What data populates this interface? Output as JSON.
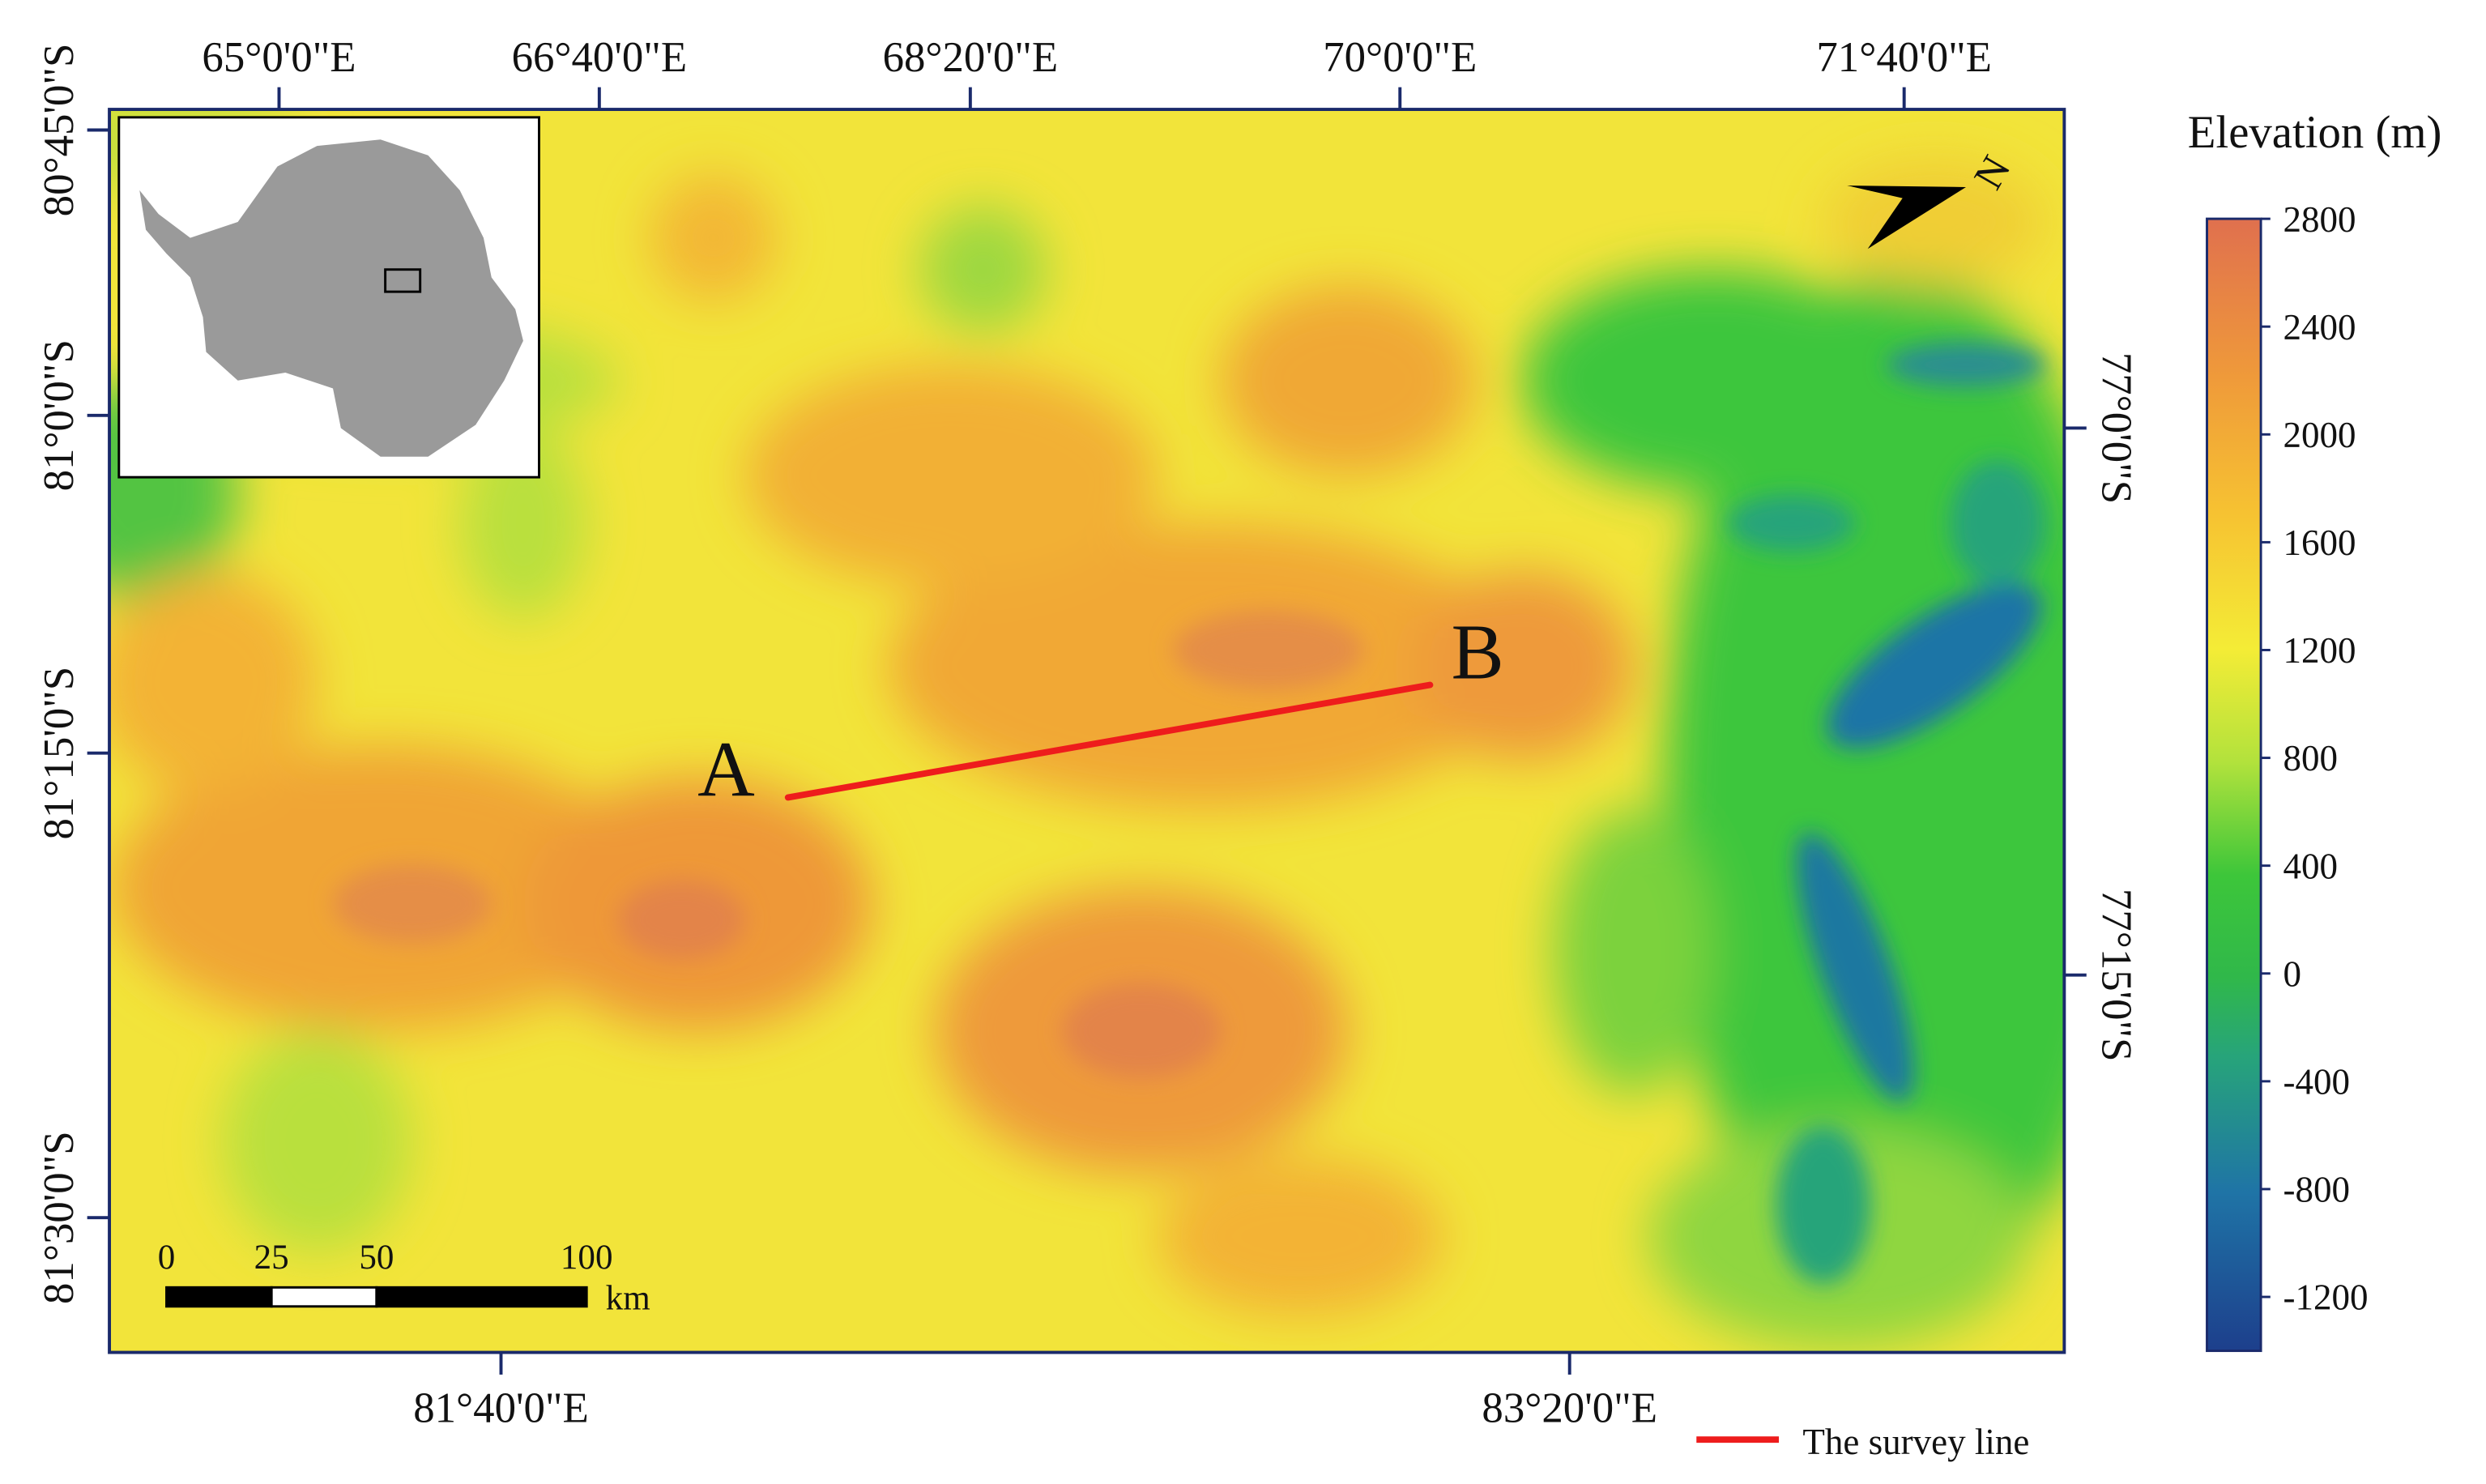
{
  "map": {
    "top_labels": [
      "65°0'0\"E",
      "66°40'0\"E",
      "68°20'0\"E",
      "70°0'0\"E",
      "71°40'0\"E"
    ],
    "bottom_labels": [
      "81°40'0\"E",
      "83°20'0\"E"
    ],
    "left_labels": [
      "80°45'0\"S",
      "81°0'0\"S",
      "81°15'0\"S",
      "81°30'0\"S"
    ],
    "right_labels": [
      "77°0'0\"S",
      "77°15'0\"S"
    ],
    "north": "N",
    "points": {
      "a": "A",
      "b": "B"
    },
    "legend": {
      "title": "Elevation (m)",
      "range": [
        -1400,
        2800
      ],
      "ticks": [
        2800,
        2400,
        2000,
        1600,
        1200,
        800,
        400,
        0,
        -400,
        -800,
        -1200
      ]
    },
    "scale_bar": {
      "range": [
        0,
        100
      ],
      "ticks": [
        0,
        25,
        50,
        100
      ],
      "unit": "km"
    },
    "survey_line": "The survey line"
  }
}
